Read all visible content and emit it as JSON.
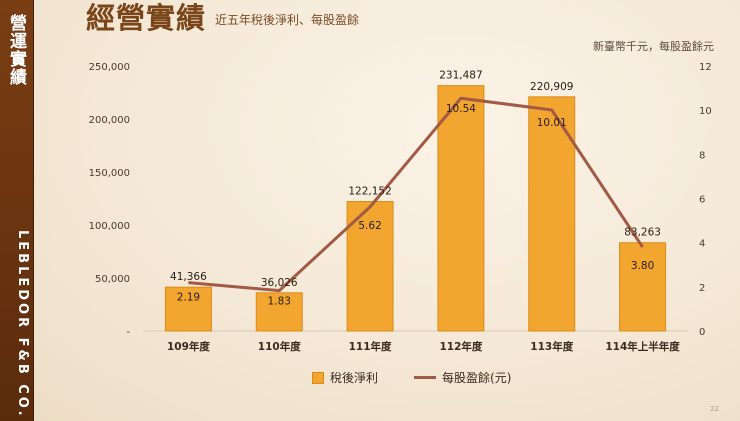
{
  "sidebar": {
    "title": "營運實績",
    "company": "LEBLEDOR F&B CO. LTD"
  },
  "header": {
    "title": "經營實績",
    "subtitle": "近五年稅後淨利、每股盈餘",
    "unit": "新臺幣千元，每股盈餘元"
  },
  "page_number": "22",
  "colors": {
    "bar": "#f2a52f",
    "bar_border": "#d98c1b",
    "line": "#a35a44",
    "accent": "#7a4518"
  },
  "chart_data": {
    "type": "bar",
    "categories": [
      "109年度",
      "110年度",
      "111年度",
      "112年度",
      "113年度",
      "114年上半年度"
    ],
    "series": [
      {
        "name": "稅後淨利",
        "type": "bar",
        "axis": "left",
        "values": [
          41366,
          36026,
          122152,
          231487,
          220909,
          83263
        ],
        "labels": [
          "41,366",
          "36,026",
          "122,152",
          "231,487",
          "220,909",
          "83,263"
        ]
      },
      {
        "name": "每股盈餘(元)",
        "type": "line",
        "axis": "right",
        "values": [
          2.19,
          1.83,
          5.62,
          10.54,
          10.01,
          3.8
        ],
        "labels": [
          "2.19",
          "1.83",
          "5.62",
          "10.54",
          "10.01",
          "3.80"
        ]
      }
    ],
    "y_left": {
      "min": 0,
      "max": 250000,
      "ticks": [
        0,
        50000,
        100000,
        150000,
        200000,
        250000
      ],
      "tick_labels": [
        "-",
        "50,000",
        "100,000",
        "150,000",
        "200,000",
        "250,000"
      ]
    },
    "y_right": {
      "min": 0,
      "max": 12,
      "ticks": [
        0,
        2,
        4,
        6,
        8,
        10,
        12
      ],
      "tick_labels": [
        "0",
        "2",
        "4",
        "6",
        "8",
        "10",
        "12"
      ]
    },
    "grid": false,
    "legend": "bottom"
  }
}
